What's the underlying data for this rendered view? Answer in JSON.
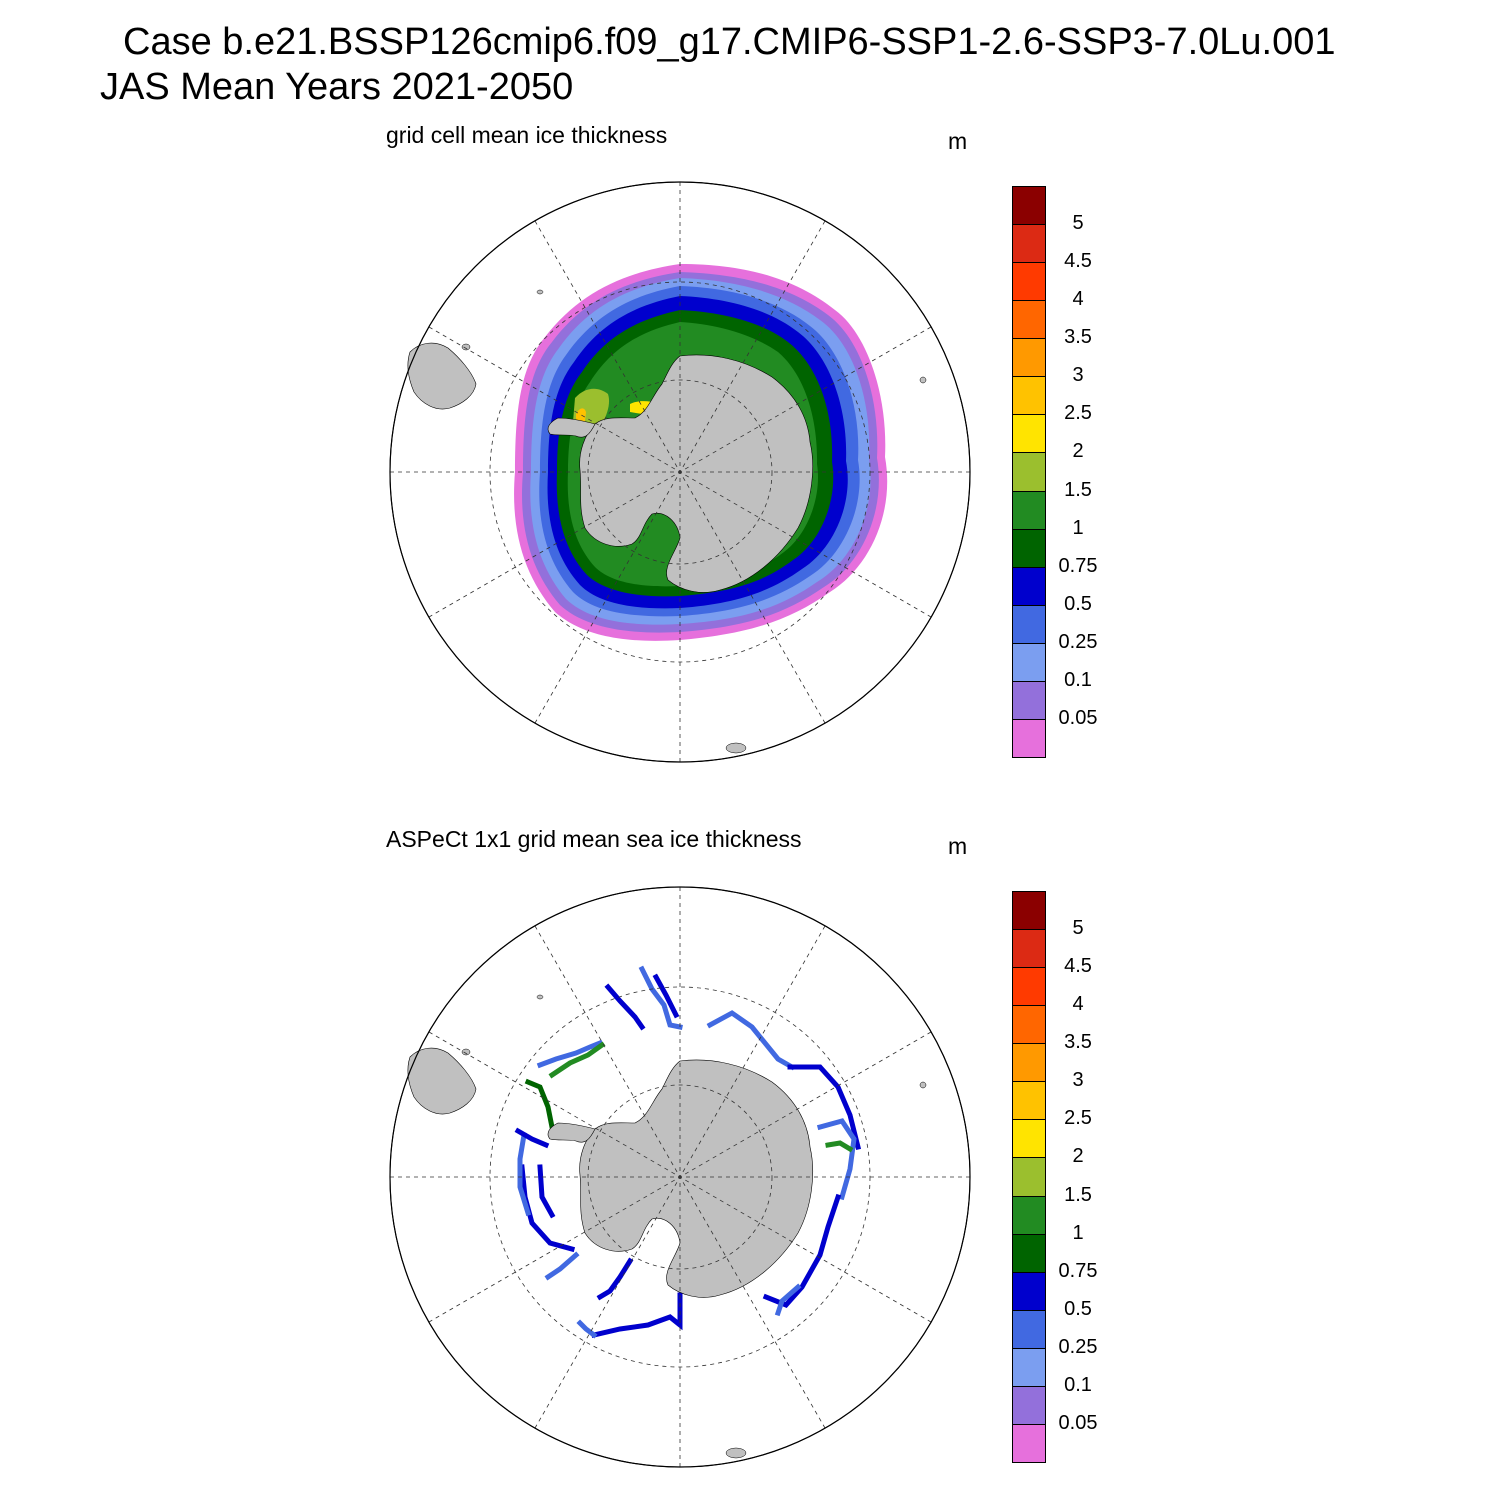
{
  "header": {
    "line1": "Case b.e21.BSSP126cmip6.f09_g17.CMIP6-SSP1-2.6-SSP3-7.0Lu.001",
    "line2": "JAS Mean   Years 2021-2050"
  },
  "panels": [
    {
      "title": "grid cell mean ice thickness",
      "units": "m"
    },
    {
      "title": "ASPeCt 1x1 grid mean sea ice thickness",
      "units": "m"
    }
  ],
  "colorbar": {
    "labels": [
      "5",
      "4.5",
      "4",
      "3.5",
      "3",
      "2.5",
      "2",
      "1.5",
      "1",
      "0.75",
      "0.5",
      "0.25",
      "0.1",
      "0.05"
    ],
    "colors": [
      "#8b0000",
      "#dc2a14",
      "#ff3a00",
      "#ff6600",
      "#ff9900",
      "#ffc200",
      "#ffe400",
      "#9bbf2e",
      "#228b22",
      "#006400",
      "#0000cd",
      "#4169e1",
      "#7b9ef0",
      "#9370db",
      "#e670dc"
    ]
  },
  "map_style": {
    "land": "#c0c0c0",
    "ocean": "#ffffff",
    "projection": "south-polar-stereographic"
  },
  "chart_data": [
    {
      "type": "heatmap",
      "title": "grid cell mean ice thickness",
      "units": "m",
      "region": "Southern Ocean / Antarctica",
      "season": "JAS",
      "levels": [
        0.05,
        0.1,
        0.25,
        0.5,
        0.75,
        1,
        1.5,
        2,
        2.5,
        3,
        3.5,
        4,
        4.5,
        5
      ]
    },
    {
      "type": "heatmap",
      "title": "ASPeCt 1x1 grid mean sea ice thickness",
      "units": "m",
      "region": "Southern Ocean / Antarctica",
      "levels": [
        0.05,
        0.1,
        0.25,
        0.5,
        0.75,
        1,
        1.5,
        2,
        2.5,
        3,
        3.5,
        4,
        4.5,
        5
      ]
    }
  ]
}
